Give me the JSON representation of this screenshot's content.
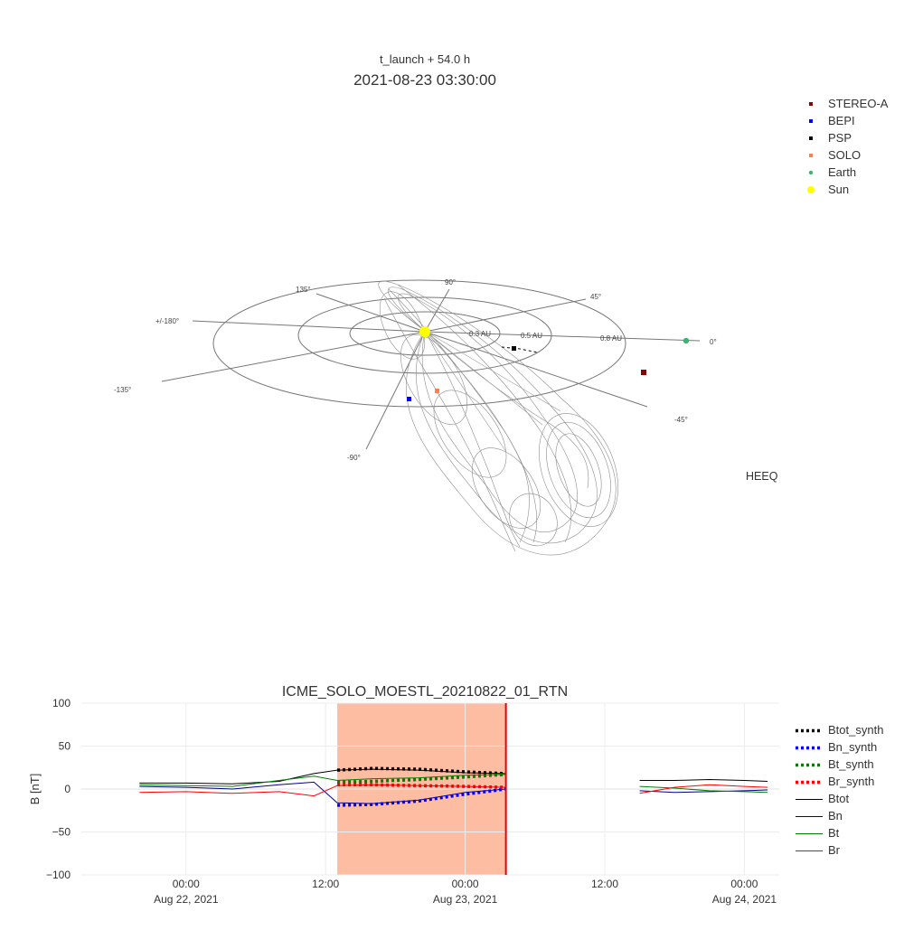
{
  "header": {
    "subtitle": "t_launch + 54.0 h",
    "title": "2021-08-23 03:30:00"
  },
  "orbit_plot": {
    "frame_label": "HEEQ",
    "ring_labels": [
      "0.3 AU",
      "0.5 AU",
      "0.8 AU"
    ],
    "angle_labels": [
      "0°",
      "45°",
      "90°",
      "135°",
      "+/-180°",
      "-135°",
      "-90°",
      "-45°"
    ],
    "legend": [
      {
        "name": "STEREO-A",
        "color": "#8b0000",
        "symbol": "square"
      },
      {
        "name": "BEPI",
        "color": "#0000ff",
        "symbol": "square"
      },
      {
        "name": "PSP",
        "color": "#000000",
        "symbol": "square"
      },
      {
        "name": "SOLO",
        "color": "#ff7f50",
        "symbol": "square"
      },
      {
        "name": "Earth",
        "color": "#3cb371",
        "symbol": "circle"
      },
      {
        "name": "Sun",
        "color": "#ffff00",
        "symbol": "circle"
      }
    ]
  },
  "chart_data": {
    "type": "line",
    "title": "ICME_SOLO_MOESTL_20210822_01_RTN",
    "ylabel": "B [nT]",
    "xlabel": "",
    "ylim": [
      -100,
      100
    ],
    "y_ticks": [
      "100",
      "50",
      "0",
      "−50",
      "−100"
    ],
    "x_ticks": [
      {
        "time": "00:00",
        "date": "Aug 22, 2021"
      },
      {
        "time": "12:00",
        "date": ""
      },
      {
        "time": "00:00",
        "date": "Aug 23, 2021"
      },
      {
        "time": "12:00",
        "date": ""
      },
      {
        "time": "00:00",
        "date": "Aug 24, 2021"
      }
    ],
    "shaded_interval": {
      "start": "2021-08-22 13:00",
      "end": "2021-08-23 03:30",
      "color": "#fdbda3"
    },
    "current_time_line": {
      "time": "2021-08-23 03:30",
      "color": "#e60000"
    },
    "grid": true,
    "legend_position": "right",
    "series": [
      {
        "name": "Btot_synth",
        "color": "#000000",
        "dash": "dot",
        "x": [
          "2021-08-22 13:00",
          "2021-08-22 16:00",
          "2021-08-22 20:00",
          "2021-08-23 00:00",
          "2021-08-23 03:30"
        ],
        "values": [
          22,
          24,
          23,
          20,
          18
        ]
      },
      {
        "name": "Bn_synth",
        "color": "#0000ff",
        "dash": "dot",
        "x": [
          "2021-08-22 13:00",
          "2021-08-22 16:00",
          "2021-08-22 20:00",
          "2021-08-23 00:00",
          "2021-08-23 03:30"
        ],
        "values": [
          -19,
          -18,
          -14,
          -6,
          0
        ]
      },
      {
        "name": "Bt_synth",
        "color": "#008000",
        "dash": "dot",
        "x": [
          "2021-08-22 13:00",
          "2021-08-22 16:00",
          "2021-08-22 20:00",
          "2021-08-23 00:00",
          "2021-08-23 03:30"
        ],
        "values": [
          8,
          9,
          11,
          14,
          17
        ]
      },
      {
        "name": "Br_synth",
        "color": "#ff0000",
        "dash": "dot",
        "x": [
          "2021-08-22 13:00",
          "2021-08-22 16:00",
          "2021-08-22 20:00",
          "2021-08-23 00:00",
          "2021-08-23 03:30"
        ],
        "values": [
          5,
          5,
          4,
          3,
          2
        ]
      },
      {
        "name": "Btot",
        "color": "#000000",
        "dash": "solid",
        "x": [
          "2021-08-21 20:00",
          "2021-08-22 00:00",
          "2021-08-22 04:00",
          "2021-08-22 08:00",
          "2021-08-22 11:00",
          "2021-08-22 13:00",
          "2021-08-22 16:00",
          "2021-08-22 20:00",
          "2021-08-23 00:00",
          "2021-08-23 03:30",
          "2021-08-23 15:00",
          "2021-08-23 18:00",
          "2021-08-23 21:00",
          "2021-08-24 00:00",
          "2021-08-24 02:00"
        ],
        "values": [
          7,
          7,
          6,
          9,
          18,
          22,
          23,
          22,
          19,
          18,
          10,
          10,
          11,
          10,
          9
        ]
      },
      {
        "name": "Bn",
        "color": "#00008b",
        "dash": "solid",
        "x": [
          "2021-08-21 20:00",
          "2021-08-22 00:00",
          "2021-08-22 04:00",
          "2021-08-22 08:00",
          "2021-08-22 11:00",
          "2021-08-22 13:00",
          "2021-08-22 16:00",
          "2021-08-22 20:00",
          "2021-08-23 00:00",
          "2021-08-23 03:30",
          "2021-08-23 15:00",
          "2021-08-23 18:00",
          "2021-08-23 21:00",
          "2021-08-24 00:00",
          "2021-08-24 02:00"
        ],
        "values": [
          3,
          2,
          0,
          5,
          8,
          -16,
          -17,
          -13,
          -4,
          0,
          -2,
          -4,
          -3,
          -2,
          -1
        ]
      },
      {
        "name": "Bt",
        "color": "#008000",
        "dash": "solid",
        "x": [
          "2021-08-21 20:00",
          "2021-08-22 00:00",
          "2021-08-22 04:00",
          "2021-08-22 08:00",
          "2021-08-22 11:00",
          "2021-08-22 13:00",
          "2021-08-22 16:00",
          "2021-08-22 20:00",
          "2021-08-23 00:00",
          "2021-08-23 03:30",
          "2021-08-23 15:00",
          "2021-08-23 18:00",
          "2021-08-23 21:00",
          "2021-08-24 00:00",
          "2021-08-24 02:00"
        ],
        "values": [
          5,
          4,
          3,
          10,
          15,
          10,
          12,
          13,
          16,
          17,
          3,
          1,
          -2,
          -3,
          -4
        ]
      },
      {
        "name": "Br",
        "color": "#ff0000",
        "dash": "solid",
        "x": [
          "2021-08-21 20:00",
          "2021-08-22 00:00",
          "2021-08-22 04:00",
          "2021-08-22 08:00",
          "2021-08-22 11:00",
          "2021-08-22 13:00",
          "2021-08-22 16:00",
          "2021-08-22 20:00",
          "2021-08-23 00:00",
          "2021-08-23 03:30",
          "2021-08-23 15:00",
          "2021-08-23 18:00",
          "2021-08-23 21:00",
          "2021-08-24 00:00",
          "2021-08-24 02:00"
        ],
        "values": [
          -4,
          -3,
          -5,
          -3,
          -8,
          4,
          5,
          4,
          3,
          2,
          -5,
          2,
          5,
          3,
          2
        ]
      }
    ]
  }
}
